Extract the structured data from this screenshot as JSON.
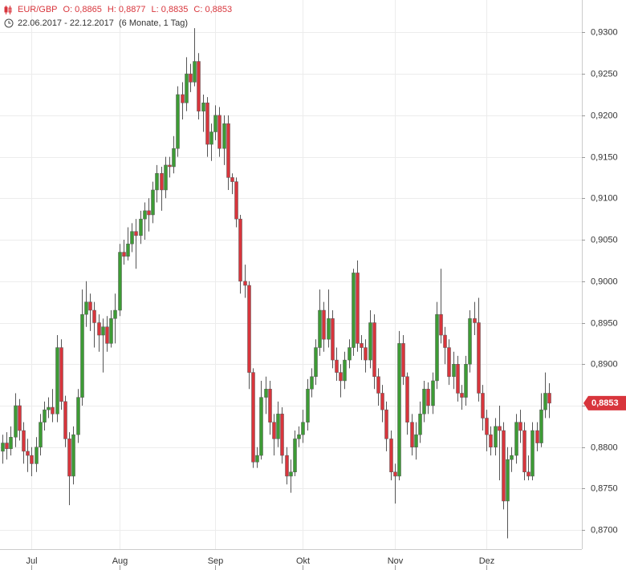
{
  "chart_data": {
    "type": "candlestick",
    "legend_text": [
      "EUR/GBP",
      "O: 0,8865",
      "H: 0,8877",
      "L: 0,8835",
      "C: 0,8853"
    ],
    "date_range": "22.06.2017 - 22.12.2017",
    "period": "(6 Monate, 1 Tag)",
    "last_value_label": "0,8853",
    "up_color": "#3d9b35",
    "down_color": "#d8353c",
    "grid": true,
    "ylim": [
      0.8677,
      0.9339
    ],
    "yticks": [
      {
        "value": 0.87,
        "label": "0,8700"
      },
      {
        "value": 0.875,
        "label": "0,8750"
      },
      {
        "value": 0.88,
        "label": "0,8800"
      },
      {
        "value": 0.885,
        "label": "0,8850"
      },
      {
        "value": 0.89,
        "label": "0,8900"
      },
      {
        "value": 0.895,
        "label": "0,8950"
      },
      {
        "value": 0.9,
        "label": "0,9000"
      },
      {
        "value": 0.905,
        "label": "0,9050"
      },
      {
        "value": 0.91,
        "label": "0,9100"
      },
      {
        "value": 0.915,
        "label": "0,9150"
      },
      {
        "value": 0.92,
        "label": "0,9200"
      },
      {
        "value": 0.925,
        "label": "0,9250"
      },
      {
        "value": 0.93,
        "label": "0,9300"
      }
    ],
    "categories": [
      null,
      null,
      null,
      null,
      null,
      null,
      null,
      "Jul",
      null,
      null,
      null,
      null,
      null,
      null,
      null,
      null,
      null,
      null,
      null,
      null,
      null,
      null,
      null,
      null,
      null,
      null,
      null,
      null,
      "Aug",
      null,
      null,
      null,
      null,
      null,
      null,
      null,
      null,
      null,
      null,
      null,
      null,
      null,
      null,
      null,
      null,
      null,
      null,
      null,
      null,
      null,
      null,
      "Sep",
      null,
      null,
      null,
      null,
      null,
      null,
      null,
      null,
      null,
      null,
      null,
      null,
      null,
      null,
      null,
      null,
      null,
      null,
      null,
      null,
      "Okt",
      null,
      null,
      null,
      null,
      null,
      null,
      null,
      null,
      null,
      null,
      null,
      null,
      null,
      null,
      null,
      null,
      null,
      null,
      null,
      null,
      null,
      "Nov",
      null,
      null,
      null,
      null,
      null,
      null,
      null,
      null,
      null,
      null,
      null,
      null,
      null,
      null,
      null,
      null,
      null,
      null,
      null,
      null,
      null,
      "Dez",
      null,
      null,
      null,
      null,
      null,
      null,
      null,
      null,
      null,
      null,
      null,
      null,
      null,
      null,
      null
    ],
    "open": [
      0.8795,
      0.8805,
      0.8798,
      0.8812,
      0.885,
      0.882,
      0.8795,
      0.879,
      0.878,
      0.88,
      0.883,
      0.8845,
      0.8848,
      0.884,
      0.892,
      0.8855,
      0.881,
      0.8765,
      0.8815,
      0.886,
      0.896,
      0.8975,
      0.8965,
      0.895,
      0.8935,
      0.8945,
      0.8925,
      0.8955,
      0.8965,
      0.9035,
      0.903,
      0.9045,
      0.906,
      0.9055,
      0.9075,
      0.9085,
      0.908,
      0.911,
      0.913,
      0.911,
      0.914,
      0.9138,
      0.916,
      0.9225,
      0.9215,
      0.925,
      0.924,
      0.9265,
      0.9205,
      0.9215,
      0.9165,
      0.918,
      0.92,
      0.916,
      0.919,
      0.9125,
      0.912,
      0.9075,
      0.9,
      0.8995,
      0.889,
      0.8782,
      0.879,
      0.886,
      0.887,
      0.883,
      0.881,
      0.884,
      0.879,
      0.8765,
      0.877,
      0.881,
      0.8815,
      0.883,
      0.887,
      0.8885,
      0.892,
      0.8965,
      0.893,
      0.8955,
      0.8905,
      0.889,
      0.888,
      0.8905,
      0.892,
      0.901,
      0.8925,
      0.892,
      0.8905,
      0.895,
      0.8885,
      0.8865,
      0.8845,
      0.881,
      0.877,
      0.8765,
      0.8925,
      0.8885,
      0.883,
      0.88,
      0.8815,
      0.884,
      0.887,
      0.885,
      0.888,
      0.896,
      0.8935,
      0.892,
      0.8885,
      0.89,
      0.8865,
      0.886,
      0.89,
      0.8955,
      0.895,
      0.8865,
      0.8835,
      0.8815,
      0.88,
      0.8825,
      0.882,
      0.8735,
      0.8785,
      0.879,
      0.883,
      0.882,
      0.877,
      0.8765,
      0.882,
      0.8805,
      0.8845,
      0.8865
    ],
    "high": [
      0.8815,
      0.8818,
      0.8825,
      0.8865,
      0.8858,
      0.883,
      0.881,
      0.88,
      0.8812,
      0.884,
      0.8855,
      0.886,
      0.887,
      0.8935,
      0.893,
      0.8862,
      0.8818,
      0.8825,
      0.887,
      0.899,
      0.9,
      0.8985,
      0.8975,
      0.896,
      0.8955,
      0.8958,
      0.8965,
      0.8985,
      0.9045,
      0.905,
      0.9065,
      0.907,
      0.9075,
      0.9085,
      0.9095,
      0.91,
      0.912,
      0.914,
      0.9138,
      0.915,
      0.915,
      0.9175,
      0.9235,
      0.924,
      0.927,
      0.9262,
      0.9305,
      0.9275,
      0.9225,
      0.9222,
      0.919,
      0.9212,
      0.921,
      0.92,
      0.92,
      0.913,
      0.9125,
      0.908,
      0.902,
      0.9,
      0.8895,
      0.88,
      0.888,
      0.8885,
      0.888,
      0.884,
      0.8855,
      0.8848,
      0.88,
      0.8785,
      0.882,
      0.8825,
      0.8845,
      0.8882,
      0.8895,
      0.893,
      0.899,
      0.8975,
      0.899,
      0.8965,
      0.892,
      0.89,
      0.8915,
      0.893,
      0.9015,
      0.9025,
      0.8935,
      0.893,
      0.8965,
      0.896,
      0.8895,
      0.8875,
      0.8855,
      0.882,
      0.878,
      0.894,
      0.8935,
      0.889,
      0.884,
      0.883,
      0.8855,
      0.888,
      0.8878,
      0.889,
      0.8975,
      0.9015,
      0.8945,
      0.893,
      0.8915,
      0.891,
      0.8875,
      0.891,
      0.8965,
      0.8975,
      0.898,
      0.8875,
      0.8845,
      0.8825,
      0.8835,
      0.885,
      0.883,
      0.88,
      0.88,
      0.884,
      0.8845,
      0.883,
      0.879,
      0.883,
      0.883,
      0.8865,
      0.889,
      0.8877
    ],
    "low": [
      0.878,
      0.8785,
      0.879,
      0.88,
      0.8808,
      0.878,
      0.877,
      0.8765,
      0.877,
      0.879,
      0.882,
      0.8835,
      0.883,
      0.883,
      0.8845,
      0.88,
      0.873,
      0.8755,
      0.8805,
      0.885,
      0.8945,
      0.894,
      0.892,
      0.8915,
      0.889,
      0.8915,
      0.892,
      0.8925,
      0.8958,
      0.902,
      0.9025,
      0.9035,
      0.9015,
      0.9045,
      0.905,
      0.906,
      0.907,
      0.9095,
      0.9085,
      0.91,
      0.9125,
      0.913,
      0.915,
      0.9195,
      0.9205,
      0.9228,
      0.9235,
      0.9195,
      0.918,
      0.915,
      0.9145,
      0.917,
      0.915,
      0.914,
      0.911,
      0.9105,
      0.9065,
      0.8985,
      0.898,
      0.887,
      0.8775,
      0.8775,
      0.8785,
      0.884,
      0.8815,
      0.879,
      0.88,
      0.878,
      0.8755,
      0.8745,
      0.8765,
      0.88,
      0.8805,
      0.882,
      0.886,
      0.8875,
      0.891,
      0.8915,
      0.892,
      0.8895,
      0.888,
      0.886,
      0.887,
      0.8895,
      0.891,
      0.8915,
      0.8905,
      0.889,
      0.8895,
      0.887,
      0.885,
      0.883,
      0.8795,
      0.876,
      0.8732,
      0.876,
      0.8875,
      0.8815,
      0.879,
      0.8785,
      0.8805,
      0.883,
      0.884,
      0.884,
      0.887,
      0.8925,
      0.89,
      0.8875,
      0.887,
      0.8855,
      0.8845,
      0.885,
      0.889,
      0.8935,
      0.8855,
      0.882,
      0.8795,
      0.879,
      0.879,
      0.876,
      0.8725,
      0.869,
      0.877,
      0.878,
      0.8805,
      0.876,
      0.876,
      0.876,
      0.8795,
      0.88,
      0.8835,
      0.8835
    ],
    "close": [
      0.8805,
      0.8798,
      0.8812,
      0.885,
      0.882,
      0.8795,
      0.879,
      0.878,
      0.88,
      0.883,
      0.8845,
      0.8848,
      0.884,
      0.892,
      0.8855,
      0.881,
      0.8765,
      0.8815,
      0.886,
      0.896,
      0.8975,
      0.8965,
      0.895,
      0.8935,
      0.8945,
      0.8925,
      0.8955,
      0.8965,
      0.9035,
      0.903,
      0.9045,
      0.906,
      0.9055,
      0.9075,
      0.9085,
      0.908,
      0.911,
      0.913,
      0.911,
      0.914,
      0.9138,
      0.916,
      0.9225,
      0.9215,
      0.925,
      0.924,
      0.9265,
      0.9205,
      0.9215,
      0.9165,
      0.918,
      0.92,
      0.916,
      0.919,
      0.9125,
      0.912,
      0.9075,
      0.9,
      0.8995,
      0.889,
      0.8782,
      0.879,
      0.886,
      0.887,
      0.883,
      0.881,
      0.884,
      0.879,
      0.8765,
      0.877,
      0.881,
      0.8815,
      0.883,
      0.887,
      0.8885,
      0.892,
      0.8965,
      0.893,
      0.8955,
      0.8905,
      0.889,
      0.888,
      0.8905,
      0.892,
      0.901,
      0.8925,
      0.892,
      0.8905,
      0.895,
      0.8885,
      0.8865,
      0.8845,
      0.881,
      0.877,
      0.8765,
      0.8925,
      0.8885,
      0.883,
      0.88,
      0.8815,
      0.884,
      0.887,
      0.885,
      0.888,
      0.896,
      0.8935,
      0.892,
      0.8885,
      0.89,
      0.8865,
      0.886,
      0.89,
      0.8955,
      0.895,
      0.8865,
      0.8835,
      0.8815,
      0.88,
      0.8825,
      0.882,
      0.8735,
      0.8785,
      0.879,
      0.883,
      0.882,
      0.877,
      0.8765,
      0.882,
      0.8805,
      0.8845,
      0.8865,
      0.8853
    ]
  }
}
